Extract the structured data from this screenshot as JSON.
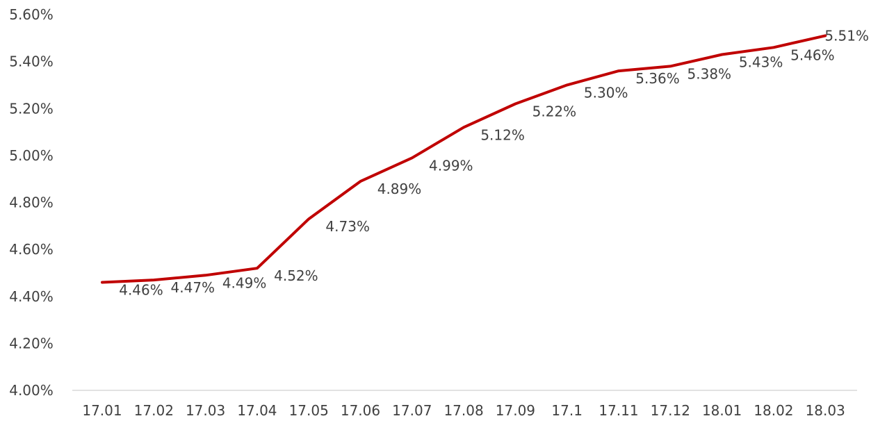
{
  "chart_data": {
    "type": "line",
    "categories": [
      "17.01",
      "17.02",
      "17.03",
      "17.04",
      "17.05",
      "17.06",
      "17.07",
      "17.08",
      "17.09",
      "17.1",
      "17.11",
      "17.12",
      "18.01",
      "18.02",
      "18.03"
    ],
    "series": [
      {
        "values": [
          4.46,
          4.47,
          4.49,
          4.52,
          4.73,
          4.89,
          4.99,
          5.12,
          5.22,
          5.3,
          5.36,
          5.38,
          5.43,
          5.46,
          5.51
        ],
        "labels": [
          "4.46%",
          "4.47%",
          "4.49%",
          "4.52%",
          "4.73%",
          "4.89%",
          "4.99%",
          "5.12%",
          "5.22%",
          "5.30%",
          "5.36%",
          "5.38%",
          "5.43%",
          "5.46%",
          "5.51%"
        ],
        "color": "#C00000"
      }
    ],
    "y_ticks": [
      4.0,
      4.2,
      4.4,
      4.6,
      4.8,
      5.0,
      5.2,
      5.4,
      5.6
    ],
    "y_tick_labels": [
      "4.00%",
      "4.20%",
      "4.40%",
      "4.60%",
      "4.80%",
      "5.00%",
      "5.20%",
      "5.40%",
      "5.60%"
    ],
    "ylim": [
      4.0,
      5.6
    ],
    "title": "",
    "xlabel": "",
    "ylabel": "",
    "grid": false,
    "legend": "none",
    "axis_color": "#D9D9D9",
    "text_color": "#404040"
  }
}
